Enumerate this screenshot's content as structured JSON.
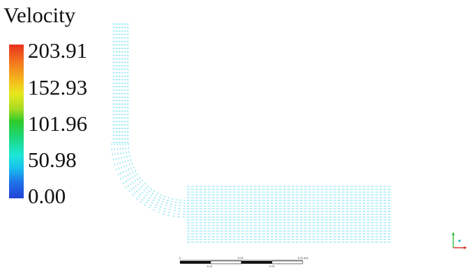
{
  "legend": {
    "title": "Velocity",
    "ticks": [
      {
        "value": "203.91"
      },
      {
        "value": "152.93"
      },
      {
        "value": "101.96"
      },
      {
        "value": "50.98"
      },
      {
        "value": "0.00"
      }
    ],
    "colormap": [
      "#2242d6",
      "#1f6fe8",
      "#19c2ee",
      "#1ce6d8",
      "#1dd87a",
      "#2ecb2a",
      "#a6dc22",
      "#e7e81d",
      "#f4c21c",
      "#f47a1e",
      "#e8321d"
    ]
  },
  "vector_field": {
    "color": "#4fd6ec",
    "shape": "elbow-pipe"
  },
  "scale_bar": {
    "top_labels": [
      "0",
      "0.02",
      "0.04 (m)"
    ],
    "bottom_labels": [
      "0.01",
      "0.03"
    ]
  },
  "axes_triad": {
    "colors": {
      "x": "#d43b2a",
      "y": "#2dbd3b",
      "z": "#2d3bd4"
    }
  }
}
